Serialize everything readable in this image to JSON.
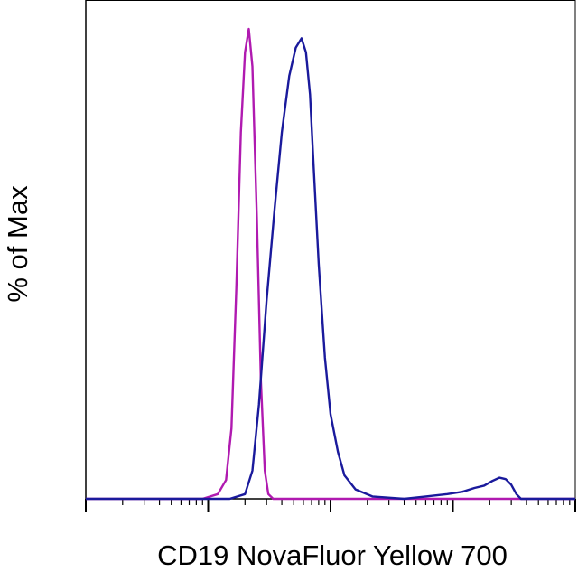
{
  "chart_data": {
    "type": "area",
    "title": "",
    "xlabel": "CD19 NovaFluor Yellow 700",
    "ylabel": "% of Max",
    "xscale": "log",
    "xlim": [
      100,
      1000000
    ],
    "ylim": [
      0,
      100
    ],
    "grid": false,
    "legend": "none",
    "series": [
      {
        "color": "#b01ab0",
        "x": [
          100,
          900,
          1200,
          1400,
          1550,
          1700,
          1850,
          2000,
          2150,
          2300,
          2500,
          2700,
          2900,
          3100,
          3400,
          1000000
        ],
        "y": [
          0,
          0,
          1,
          4,
          15,
          45,
          78,
          95,
          100,
          92,
          60,
          25,
          6,
          1,
          0,
          0
        ]
      },
      {
        "color": "#1a1a9c",
        "x": [
          100,
          1500,
          2000,
          2300,
          2600,
          3000,
          3500,
          4000,
          4600,
          5200,
          5800,
          6300,
          6800,
          7300,
          8000,
          9000,
          10000,
          11500,
          13000,
          16000,
          22000,
          40000,
          60000,
          90000,
          120000,
          150000,
          180000,
          210000,
          240000,
          270000,
          300000,
          330000,
          360000,
          1000000
        ],
        "y": [
          0,
          0,
          1,
          6,
          20,
          42,
          62,
          78,
          90,
          96,
          98,
          95,
          86,
          70,
          50,
          30,
          18,
          10,
          5,
          2,
          0.5,
          0,
          0.5,
          1,
          1.5,
          2.3,
          2.8,
          3.8,
          4.5,
          4.2,
          3,
          1,
          0,
          0
        ]
      }
    ]
  }
}
